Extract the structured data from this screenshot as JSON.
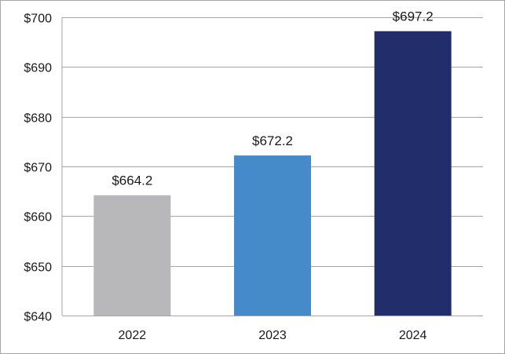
{
  "chart_data": {
    "type": "bar",
    "title": "",
    "xlabel": "",
    "ylabel": "",
    "categories": [
      "2022",
      "2023",
      "2024"
    ],
    "values": [
      664.2,
      672.2,
      697.2
    ],
    "data_labels": [
      "$664.2",
      "$672.2",
      "$697.2"
    ],
    "bar_colors": [
      "#b8b7b9",
      "#458bc9",
      "#222e6b"
    ],
    "ylim": [
      640,
      700
    ],
    "yticks": [
      640,
      650,
      660,
      670,
      680,
      690,
      700
    ],
    "ytick_labels": [
      "$640",
      "$650",
      "$660",
      "$670",
      "$680",
      "$690",
      "$700"
    ],
    "grid": true,
    "legend": false
  }
}
